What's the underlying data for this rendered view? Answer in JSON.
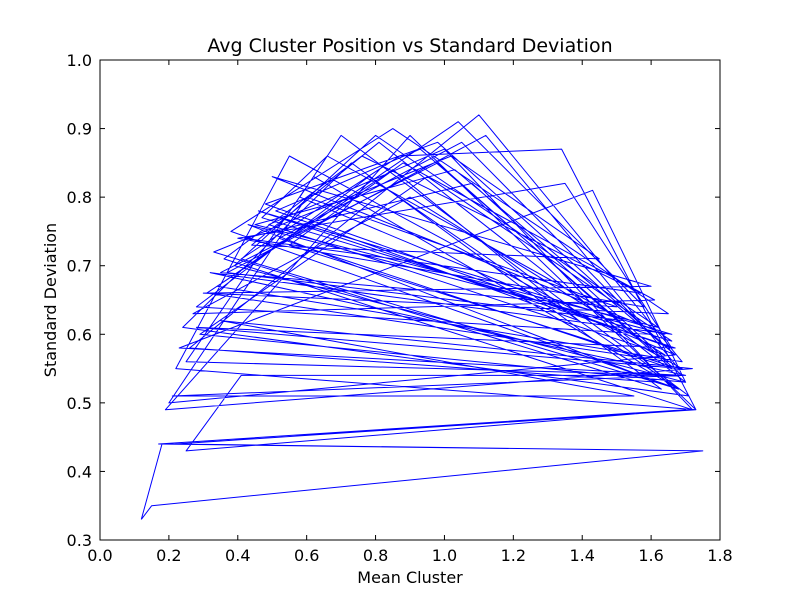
{
  "chart_data": {
    "type": "line",
    "title": "Avg Cluster Position vs Standard Deviation",
    "xlabel": "Mean Cluster",
    "ylabel": "Standard Deviation",
    "xlim": [
      0.0,
      1.8
    ],
    "ylim": [
      0.3,
      1.0
    ],
    "xticks": [
      "0.0",
      "0.2",
      "0.4",
      "0.6",
      "0.8",
      "1.0",
      "1.2",
      "1.4",
      "1.6",
      "1.8"
    ],
    "yticks": [
      "0.3",
      "0.4",
      "0.5",
      "0.6",
      "0.7",
      "0.8",
      "0.9",
      "1.0"
    ],
    "grid": false,
    "series": [
      {
        "color": "#0000ff",
        "x": [
          0.12,
          0.18,
          1.75,
          0.17,
          1.7,
          0.25,
          0.41,
          1.69,
          0.21,
          1.55,
          0.35,
          1.72,
          0.19,
          0.9,
          1.73,
          0.22,
          0.55,
          1.69,
          0.28,
          1.67,
          0.46,
          1.66,
          0.32,
          1.7,
          0.25,
          0.62,
          1.68,
          0.38,
          0.85,
          1.65,
          0.3,
          1.6,
          0.5,
          1.64,
          0.43,
          1.62,
          0.26,
          1.1,
          1.69,
          0.34,
          1.04,
          1.58,
          0.4,
          1.35,
          1.66,
          0.48,
          0.98,
          1.67,
          0.58,
          0.7,
          1.71,
          0.24,
          0.73,
          1.63,
          0.33,
          1.02,
          1.45,
          0.44,
          0.81,
          1.7,
          0.29,
          0.95,
          1.66,
          0.47,
          0.66,
          1.52,
          0.37,
          1.12,
          1.68,
          0.55,
          0.88,
          1.61,
          0.27,
          0.9,
          1.64,
          0.49,
          1.0,
          1.72,
          0.36,
          0.76,
          1.57,
          0.42,
          1.08,
          1.65,
          0.31,
          0.85,
          1.39,
          0.51,
          0.93,
          1.69,
          0.23,
          1.43,
          1.7,
          0.39,
          0.8,
          1.62,
          0.45,
          1.03,
          1.67,
          0.2,
          0.6,
          1.5,
          0.35,
          0.98,
          1.66,
          0.52,
          1.05,
          1.6,
          0.28,
          0.78,
          1.68,
          0.41,
          0.87,
          1.34,
          1.73,
          0.22,
          1.75,
          0.15,
          0.12
        ],
        "y": [
          0.33,
          0.44,
          0.43,
          0.44,
          0.49,
          0.43,
          0.54,
          0.54,
          0.51,
          0.51,
          0.62,
          0.55,
          0.49,
          0.89,
          0.49,
          0.55,
          0.86,
          0.55,
          0.61,
          0.58,
          0.78,
          0.6,
          0.69,
          0.54,
          0.56,
          0.83,
          0.52,
          0.75,
          0.9,
          0.63,
          0.66,
          0.67,
          0.83,
          0.6,
          0.76,
          0.53,
          0.58,
          0.92,
          0.56,
          0.67,
          0.91,
          0.64,
          0.74,
          0.82,
          0.58,
          0.79,
          0.88,
          0.57,
          0.8,
          0.89,
          0.51,
          0.61,
          0.85,
          0.52,
          0.72,
          0.86,
          0.71,
          0.73,
          0.88,
          0.53,
          0.6,
          0.83,
          0.59,
          0.77,
          0.86,
          0.62,
          0.69,
          0.89,
          0.55,
          0.73,
          0.85,
          0.65,
          0.63,
          0.8,
          0.57,
          0.76,
          0.87,
          0.49,
          0.71,
          0.86,
          0.66,
          0.74,
          0.82,
          0.56,
          0.66,
          0.84,
          0.62,
          0.78,
          0.87,
          0.54,
          0.58,
          0.81,
          0.53,
          0.7,
          0.89,
          0.61,
          0.76,
          0.84,
          0.57,
          0.5,
          0.8,
          0.64,
          0.69,
          0.85,
          0.55,
          0.74,
          0.88,
          0.6,
          0.64,
          0.83,
          0.52,
          0.71,
          0.86,
          0.87,
          0.49,
          0.44,
          0.43,
          0.35,
          0.33
        ]
      }
    ]
  }
}
